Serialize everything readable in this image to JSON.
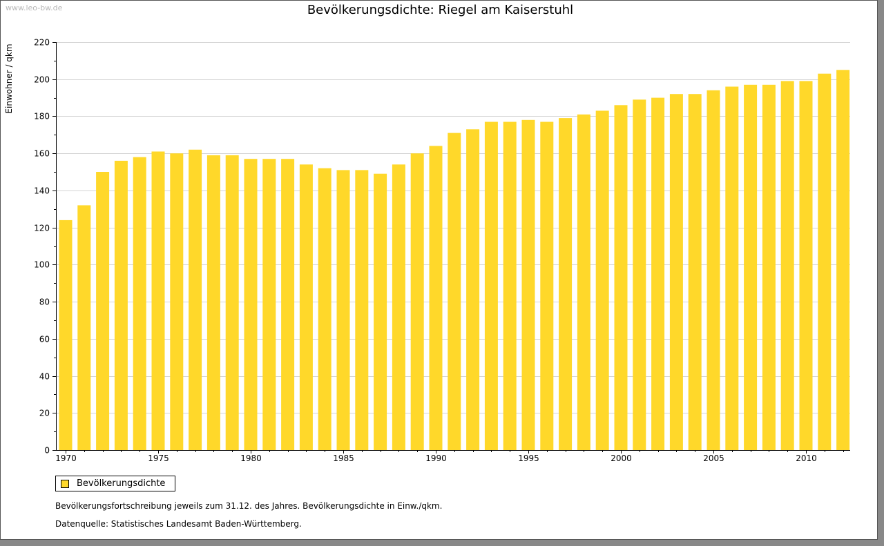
{
  "watermark": "www.leo-bw.de",
  "colors": {
    "bar": "#FFD82A",
    "axis": "#000000",
    "grid": "#d4d4d4"
  },
  "chart_data": {
    "type": "bar",
    "title": "Bevölkerungsdichte: Riegel am Kaiserstuhl",
    "ylabel": "Einwohner / qkm",
    "xlabel": "",
    "ylim": [
      0,
      220
    ],
    "yticks": [
      0,
      20,
      40,
      60,
      80,
      100,
      120,
      140,
      160,
      180,
      200,
      220
    ],
    "xtick_labels": [
      "1970",
      "1975",
      "1980",
      "1985",
      "1990",
      "1995",
      "2000",
      "2005",
      "2010"
    ],
    "grid": true,
    "legend_position": "bottom-left",
    "categories": [
      1970,
      1971,
      1972,
      1973,
      1974,
      1975,
      1976,
      1977,
      1978,
      1979,
      1980,
      1981,
      1982,
      1983,
      1984,
      1985,
      1986,
      1987,
      1988,
      1989,
      1990,
      1991,
      1992,
      1993,
      1994,
      1995,
      1996,
      1997,
      1998,
      1999,
      2000,
      2001,
      2002,
      2003,
      2004,
      2005,
      2006,
      2007,
      2008,
      2009,
      2010,
      2011,
      2012
    ],
    "series": [
      {
        "name": "Bevölkerungsdichte",
        "values": [
          124,
          132,
          150,
          156,
          158,
          161,
          160,
          162,
          159,
          159,
          157,
          157,
          157,
          154,
          152,
          151,
          151,
          149,
          154,
          160,
          164,
          171,
          173,
          177,
          177,
          178,
          177,
          179,
          181,
          183,
          186,
          189,
          190,
          192,
          192,
          194,
          196,
          197,
          197,
          199,
          199,
          203,
          205
        ]
      }
    ]
  },
  "notes": {
    "line1": "Bevölkerungsfortschreibung jeweils zum 31.12. des Jahres. Bevölkerungsdichte in Einw./qkm.",
    "line2": "Datenquelle: Statistisches Landesamt Baden-Württemberg."
  }
}
